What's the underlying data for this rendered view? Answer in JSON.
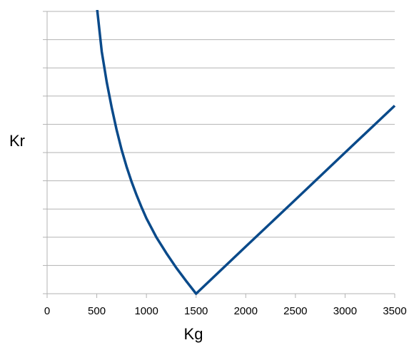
{
  "chart_data": {
    "type": "line",
    "title": "",
    "xlabel": "Kg",
    "ylabel": "Kr",
    "xlim": [
      0,
      3500
    ],
    "ylim": [
      0,
      10
    ],
    "x_ticks": [
      "0",
      "500",
      "1000",
      "1500",
      "2000",
      "2500",
      "3000",
      "3500"
    ],
    "y_tick_count": 11,
    "y_tick_labels_shown": false,
    "grid": "horizontal",
    "legend": "none",
    "series": [
      {
        "color": "#0a4a8a",
        "x": [
          500,
          550,
          600,
          650,
          700,
          750,
          800,
          850,
          900,
          950,
          1000,
          1100,
          1200,
          1300,
          1400,
          1500,
          2000,
          2500,
          3000,
          3500
        ],
        "y": [
          10.2,
          8.58,
          7.5,
          6.6,
          5.8,
          5.1,
          4.5,
          3.97,
          3.5,
          3.07,
          2.67,
          2.0,
          1.44,
          0.92,
          0.45,
          0,
          1.67,
          3.33,
          5.0,
          6.66
        ]
      }
    ]
  }
}
